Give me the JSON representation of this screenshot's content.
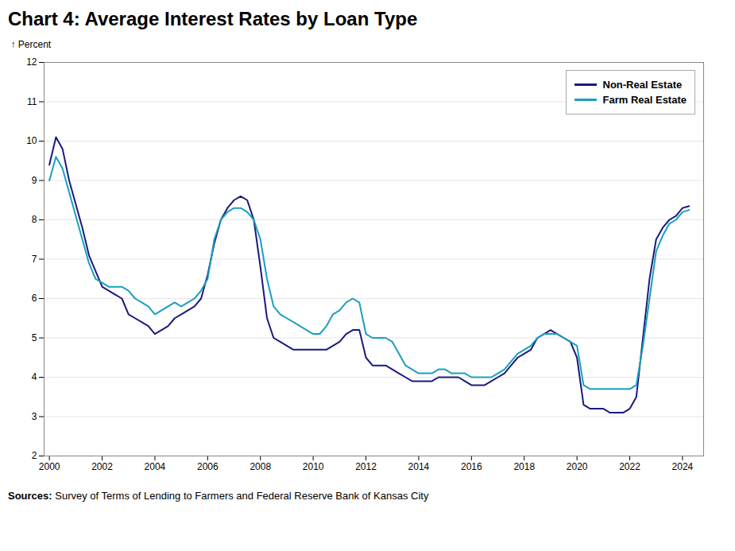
{
  "chart_data": {
    "type": "line",
    "title": "Chart 4: Average Interest Rates by Loan Type",
    "ylabel": "Percent",
    "caption": "Sources: Survey of Terms of Lending to Farmers and Federal Reserve Bank of Kansas City",
    "x": [
      2000.0,
      2000.25,
      2000.5,
      2000.75,
      2001.0,
      2001.25,
      2001.5,
      2001.75,
      2002.0,
      2002.25,
      2002.5,
      2002.75,
      2003.0,
      2003.25,
      2003.5,
      2003.75,
      2004.0,
      2004.25,
      2004.5,
      2004.75,
      2005.0,
      2005.25,
      2005.5,
      2005.75,
      2006.0,
      2006.25,
      2006.5,
      2006.75,
      2007.0,
      2007.25,
      2007.5,
      2007.75,
      2008.0,
      2008.25,
      2008.5,
      2008.75,
      2009.0,
      2009.25,
      2009.5,
      2009.75,
      2010.0,
      2010.25,
      2010.5,
      2010.75,
      2011.0,
      2011.25,
      2011.5,
      2011.75,
      2012.0,
      2012.25,
      2012.5,
      2012.75,
      2013.0,
      2013.25,
      2013.5,
      2013.75,
      2014.0,
      2014.25,
      2014.5,
      2014.75,
      2015.0,
      2015.25,
      2015.5,
      2015.75,
      2016.0,
      2016.25,
      2016.5,
      2016.75,
      2017.0,
      2017.25,
      2017.5,
      2017.75,
      2018.0,
      2018.25,
      2018.5,
      2018.75,
      2019.0,
      2019.25,
      2019.5,
      2019.75,
      2020.0,
      2020.25,
      2020.5,
      2020.75,
      2021.0,
      2021.25,
      2021.5,
      2021.75,
      2022.0,
      2022.25,
      2022.5,
      2022.75,
      2023.0,
      2023.25,
      2023.5,
      2023.75,
      2024.0,
      2024.25
    ],
    "series": [
      {
        "name": "Non-Real Estate",
        "color": "#1a1a7e",
        "values": [
          9.4,
          10.1,
          9.8,
          9.0,
          8.4,
          7.8,
          7.1,
          6.7,
          6.3,
          6.2,
          6.1,
          6.0,
          5.6,
          5.5,
          5.4,
          5.3,
          5.1,
          5.2,
          5.3,
          5.5,
          5.6,
          5.7,
          5.8,
          6.0,
          6.6,
          7.4,
          8.0,
          8.3,
          8.5,
          8.6,
          8.5,
          8.0,
          6.8,
          5.5,
          5.0,
          4.9,
          4.8,
          4.7,
          4.7,
          4.7,
          4.7,
          4.7,
          4.7,
          4.8,
          4.9,
          5.1,
          5.2,
          5.2,
          4.5,
          4.3,
          4.3,
          4.3,
          4.2,
          4.1,
          4.0,
          3.9,
          3.9,
          3.9,
          3.9,
          4.0,
          4.0,
          4.0,
          4.0,
          3.9,
          3.8,
          3.8,
          3.8,
          3.9,
          4.0,
          4.1,
          4.3,
          4.5,
          4.6,
          4.7,
          5.0,
          5.1,
          5.2,
          5.1,
          5.0,
          4.9,
          4.5,
          3.3,
          3.2,
          3.2,
          3.2,
          3.1,
          3.1,
          3.1,
          3.2,
          3.5,
          5.0,
          6.5,
          7.5,
          7.8,
          8.0,
          8.1,
          8.3,
          8.35
        ]
      },
      {
        "name": "Farm Real Estate",
        "color": "#1a9fc0",
        "values": [
          9.0,
          9.6,
          9.3,
          8.7,
          8.1,
          7.5,
          6.9,
          6.5,
          6.4,
          6.3,
          6.3,
          6.3,
          6.2,
          6.0,
          5.9,
          5.8,
          5.6,
          5.7,
          5.8,
          5.9,
          5.8,
          5.9,
          6.0,
          6.2,
          6.5,
          7.5,
          8.0,
          8.2,
          8.3,
          8.3,
          8.2,
          8.0,
          7.5,
          6.5,
          5.8,
          5.6,
          5.5,
          5.4,
          5.3,
          5.2,
          5.1,
          5.1,
          5.3,
          5.6,
          5.7,
          5.9,
          6.0,
          5.9,
          5.1,
          5.0,
          5.0,
          5.0,
          4.9,
          4.6,
          4.3,
          4.2,
          4.1,
          4.1,
          4.1,
          4.2,
          4.2,
          4.1,
          4.1,
          4.1,
          4.0,
          4.0,
          4.0,
          4.0,
          4.1,
          4.2,
          4.4,
          4.6,
          4.7,
          4.8,
          5.0,
          5.1,
          5.1,
          5.1,
          5.0,
          4.9,
          4.8,
          3.8,
          3.7,
          3.7,
          3.7,
          3.7,
          3.7,
          3.7,
          3.7,
          3.8,
          4.8,
          6.0,
          7.2,
          7.6,
          7.9,
          8.0,
          8.2,
          8.25
        ]
      }
    ],
    "xlim": [
      1999.8,
      2024.8
    ],
    "xticks": [
      2000,
      2002,
      2004,
      2006,
      2008,
      2010,
      2012,
      2014,
      2016,
      2018,
      2020,
      2022,
      2024
    ],
    "ylim": [
      2,
      12
    ],
    "yticks": [
      2,
      3,
      4,
      5,
      6,
      7,
      8,
      9,
      10,
      11,
      12
    ],
    "grid": true,
    "legend": "upper right"
  }
}
